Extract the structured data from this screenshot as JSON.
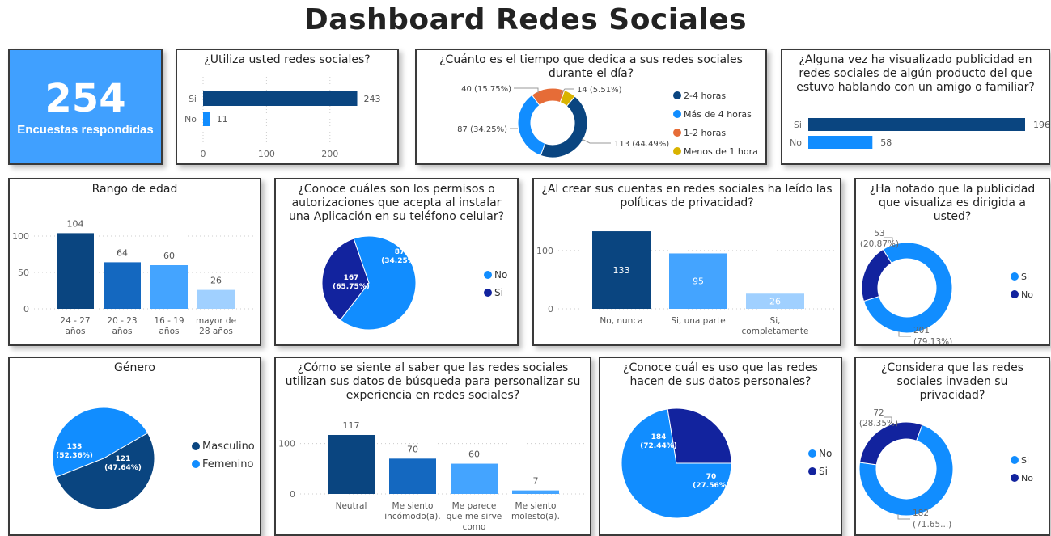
{
  "header": {
    "title": "Dashboard Redes Sociales"
  },
  "colors": {
    "dark_navy": "#0a4580",
    "mid_blue": "#1468c0",
    "bright_blue": "#118dff",
    "light_blue": "#44a4ff",
    "pale_blue": "#a0d0ff",
    "indigo": "#12239e",
    "orange": "#e66c37",
    "gold": "#d9b300",
    "kpi_bg": "#40a0ff"
  },
  "kpi": {
    "value": "254",
    "label": "Encuestas respondidas"
  },
  "chart_data": [
    {
      "id": "utiliza",
      "type": "bar",
      "orientation": "horizontal",
      "title": "¿Utiliza usted redes sociales?",
      "categories": [
        "Si",
        "No"
      ],
      "values": [
        243,
        11
      ],
      "xticks": [
        "0",
        "100",
        "200"
      ],
      "xlim": [
        0,
        250
      ]
    },
    {
      "id": "tiempo",
      "type": "pie",
      "donut": true,
      "title": "¿Cuánto es el tiempo que dedica a sus redes sociales durante el día?",
      "categories": [
        "2-4 horas",
        "Más de 4 horas",
        "1-2 horas",
        "Menos de 1 hora"
      ],
      "values": [
        113,
        87,
        40,
        14
      ],
      "labels": [
        "113 (44.49%)",
        "87 (34.25%)",
        "40 (15.75%)",
        "14 (5.51%)"
      ],
      "legend": [
        "2-4 horas",
        "Más de 4 horas",
        "1-2 horas",
        "Menos de 1 hora"
      ],
      "legend_position": "right"
    },
    {
      "id": "publicidad_amigo",
      "type": "bar",
      "orientation": "horizontal",
      "title": "¿Alguna vez ha visualizado publicidad en redes sociales de algún producto del que estuvo hablando con un amigo o familiar?",
      "categories": [
        "Si",
        "No"
      ],
      "values": [
        196,
        58
      ]
    },
    {
      "id": "edad",
      "type": "bar",
      "title": "Rango de edad",
      "categories": [
        "24 - 27 años",
        "20 - 23 años",
        "16 - 19 años",
        "mayor de 28 años"
      ],
      "category_lines": [
        [
          "24 - 27",
          "años"
        ],
        [
          "20 - 23",
          "años"
        ],
        [
          "16 - 19",
          "años"
        ],
        [
          "mayor de",
          "28 años"
        ]
      ],
      "values": [
        104,
        64,
        60,
        26
      ],
      "yticks": [
        "0",
        "50",
        "100"
      ],
      "ylim": [
        0,
        110
      ]
    },
    {
      "id": "permisos",
      "type": "pie",
      "title": "¿Conoce cuáles son los permisos o autorizaciones que acepta al instalar una Aplicación en su teléfono celular?",
      "categories": [
        "No",
        "Si"
      ],
      "values": [
        167,
        87
      ],
      "labels": [
        [
          "167",
          "(65.75%)"
        ],
        [
          "87",
          "(34.25%)"
        ]
      ],
      "legend": [
        "No",
        "Si"
      ],
      "legend_position": "right"
    },
    {
      "id": "politicas",
      "type": "bar",
      "title": "¿Al crear sus cuentas en redes sociales ha leído las políticas de privacidad?",
      "categories": [
        "No, nunca",
        "Si, una parte",
        "Si, completamente"
      ],
      "category_lines": [
        [
          "No, nunca"
        ],
        [
          "Si, una parte"
        ],
        [
          "Si,",
          "completamente"
        ]
      ],
      "values": [
        133,
        95,
        26
      ],
      "yticks": [
        "0",
        "100"
      ],
      "ylim": [
        0,
        140
      ]
    },
    {
      "id": "dirigida",
      "type": "pie",
      "donut": true,
      "title": "¿Ha notado que la publicidad que visualiza es dirigida a usted?",
      "categories": [
        "Si",
        "No"
      ],
      "values": [
        201,
        53
      ],
      "labels": [
        [
          "201",
          "(79.13%)"
        ],
        [
          "53",
          "(20.87%)"
        ]
      ],
      "legend": [
        "Si",
        "No"
      ],
      "legend_position": "right"
    },
    {
      "id": "genero",
      "type": "pie",
      "title": "Género",
      "categories": [
        "Masculino",
        "Femenino"
      ],
      "values": [
        133,
        121
      ],
      "labels": [
        [
          "133",
          "(52.36%)"
        ],
        [
          "121",
          "(47.64%)"
        ]
      ],
      "legend": [
        "Masculino",
        "Femenino"
      ],
      "legend_position": "right"
    },
    {
      "id": "sentimiento",
      "type": "bar",
      "title": "¿Cómo se siente al saber que las redes sociales utilizan sus datos de búsqueda para personalizar su experiencia en redes sociales?",
      "categories": [
        "Neutral",
        "Me siento incómodo(a).",
        "Me parece que me sirve como ...",
        "Me siento molesto(a)."
      ],
      "category_lines": [
        [
          "Neutral"
        ],
        [
          "Me siento",
          "incómodo(a)."
        ],
        [
          "Me parece",
          "que me sirve",
          "como"
        ],
        [
          "Me siento",
          "molesto(a)."
        ]
      ],
      "values": [
        117,
        70,
        60,
        7
      ],
      "yticks": [
        "0",
        "100"
      ],
      "ylim": [
        0,
        125
      ]
    },
    {
      "id": "uso_datos",
      "type": "pie",
      "title": "¿Conoce cuál es uso que las redes hacen de sus datos personales?",
      "categories": [
        "No",
        "Si"
      ],
      "values": [
        184,
        70
      ],
      "labels": [
        [
          "184",
          "(72.44%)"
        ],
        [
          "70",
          "(27.56%)"
        ]
      ],
      "legend": [
        "No",
        "Si"
      ],
      "legend_position": "right"
    },
    {
      "id": "invaden",
      "type": "pie",
      "donut": true,
      "title": "¿Considera que las redes sociales invaden su privacidad?",
      "categories": [
        "Si",
        "No"
      ],
      "values": [
        182,
        72
      ],
      "labels": [
        [
          "182",
          "(71.65...)"
        ],
        [
          "72",
          "(28.35%)"
        ]
      ],
      "legend": [
        "Si",
        "No"
      ],
      "legend_position": "right"
    }
  ]
}
